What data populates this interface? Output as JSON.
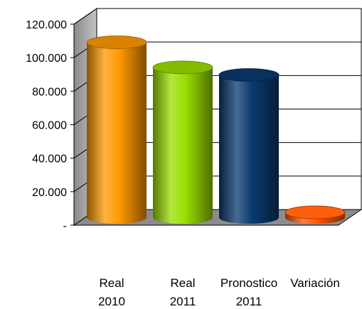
{
  "chart_data": {
    "type": "bar",
    "style": "3d-cylinder",
    "categories": [
      [
        "Real",
        "2010"
      ],
      [
        "Real",
        "2011"
      ],
      [
        "Pronostico",
        "2011"
      ],
      [
        "Variación",
        ""
      ]
    ],
    "values": [
      104500,
      89500,
      85000,
      3000
    ],
    "colors": [
      "#ff9900",
      "#99dd00",
      "#0a3a6e",
      "#ff5500"
    ],
    "ylim": [
      0,
      120000
    ],
    "yticks": [
      0,
      20000,
      40000,
      60000,
      80000,
      100000,
      120000
    ],
    "ytick_labels": [
      "-",
      "20.000",
      "40.000",
      "60.000",
      "80.000",
      "100.000",
      "120.000"
    ],
    "grid": true,
    "title": "",
    "xlabel": "",
    "ylabel": "",
    "legend": "none"
  }
}
